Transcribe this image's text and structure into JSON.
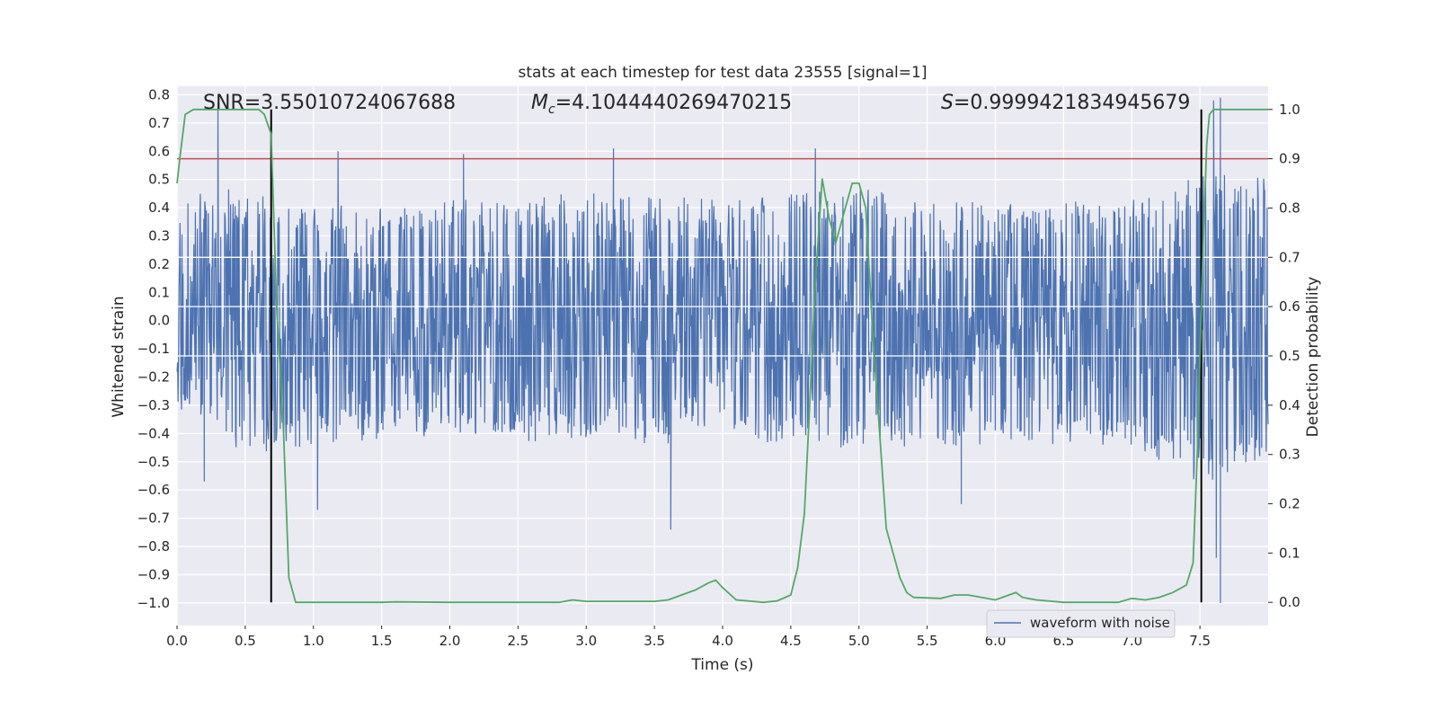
{
  "chart_data": {
    "type": "line",
    "title": "stats at each timestep for test data 23555 [signal=1]",
    "xlabel": "Time (s)",
    "ylabel": "Whitened strain",
    "y2label": "Detection probability",
    "xlim": [
      0.0,
      8.0
    ],
    "ylim": [
      -1.08,
      0.83
    ],
    "y2lim": [
      -0.047,
      1.047
    ],
    "x_ticks": [
      0.0,
      0.5,
      1.0,
      1.5,
      2.0,
      2.5,
      3.0,
      3.5,
      4.0,
      4.5,
      5.0,
      5.5,
      6.0,
      6.5,
      7.0,
      7.5
    ],
    "x_tick_labels": [
      "0.0",
      "0.5",
      "1.0",
      "1.5",
      "2.0",
      "2.5",
      "3.0",
      "3.5",
      "4.0",
      "4.5",
      "5.0",
      "5.5",
      "6.0",
      "6.5",
      "7.0",
      "7.5"
    ],
    "y_ticks": [
      0.8,
      0.7,
      0.6,
      0.5,
      0.4,
      0.3,
      0.2,
      0.1,
      0.0,
      -0.1,
      -0.2,
      -0.3,
      -0.4,
      -0.5,
      -0.6,
      -0.7,
      -0.8,
      -0.9,
      -1.0
    ],
    "y_tick_labels": [
      "0.8",
      "0.7",
      "0.6",
      "0.5",
      "0.4",
      "0.3",
      "0.2",
      "0.1",
      "0.0",
      "−0.1",
      "−0.2",
      "−0.3",
      "−0.4",
      "−0.5",
      "−0.6",
      "−0.7",
      "−0.8",
      "−0.9",
      "−1.0"
    ],
    "y2_ticks": [
      1.0,
      0.9,
      0.8,
      0.7,
      0.6,
      0.5,
      0.4,
      0.3,
      0.2,
      0.1,
      0.0
    ],
    "y2_tick_labels": [
      "1.0",
      "0.9",
      "0.8",
      "0.7",
      "0.6",
      "0.5",
      "0.4",
      "0.3",
      "0.2",
      "0.1",
      "0.0"
    ],
    "grid": true,
    "legend": {
      "placement": "lower-right",
      "entries": [
        "waveform with noise"
      ]
    },
    "annotations": {
      "snr": "SNR=3.55010724067688",
      "mc_prefix": "M",
      "mc_sub": "c",
      "mc_value": "=4.1044440269470215",
      "s_prefix": "S",
      "s_value": "=0.9999421834945679"
    },
    "threshold_line": {
      "axis": "y2",
      "value": 0.9,
      "color": "#c44e52"
    },
    "vertical_lines": [
      0.69,
      7.51
    ],
    "horizontal_white_lines_y2": [
      0.7,
      0.6,
      0.5
    ],
    "series": [
      {
        "name": "waveform with noise",
        "axis": "y",
        "color": "#4c72b0",
        "description_envelope": {
          "x": [
            0.0,
            0.5,
            1.0,
            1.5,
            2.0,
            2.5,
            3.0,
            3.5,
            4.0,
            4.5,
            5.0,
            5.5,
            6.0,
            6.5,
            7.0,
            7.5,
            8.0
          ],
          "typical_max": [
            0.42,
            0.45,
            0.38,
            0.4,
            0.41,
            0.42,
            0.43,
            0.42,
            0.41,
            0.43,
            0.45,
            0.42,
            0.41,
            0.42,
            0.41,
            0.5,
            0.48
          ],
          "typical_min": [
            -0.3,
            -0.45,
            -0.42,
            -0.4,
            -0.4,
            -0.41,
            -0.42,
            -0.42,
            -0.4,
            -0.42,
            -0.44,
            -0.42,
            -0.43,
            -0.42,
            -0.42,
            -0.55,
            -0.5
          ],
          "spikes": [
            [
              0.3,
              0.77
            ],
            [
              1.18,
              0.6
            ],
            [
              2.1,
              0.59
            ],
            [
              3.2,
              0.61
            ],
            [
              4.68,
              0.61
            ],
            [
              7.6,
              0.78
            ],
            [
              7.65,
              0.79
            ],
            [
              0.2,
              -0.57
            ],
            [
              1.03,
              -0.67
            ],
            [
              3.62,
              -0.74
            ],
            [
              5.75,
              -0.65
            ],
            [
              7.65,
              -1.0
            ],
            [
              7.62,
              -0.84
            ]
          ]
        }
      },
      {
        "name": "",
        "axis": "y2",
        "color": "#55a868",
        "x": [
          0.0,
          0.02,
          0.06,
          0.12,
          0.18,
          0.3,
          0.5,
          0.6,
          0.64,
          0.69,
          0.73,
          0.78,
          0.82,
          0.87,
          0.9,
          1.0,
          1.2,
          1.5,
          1.6,
          2.0,
          2.5,
          2.8,
          2.9,
          3.0,
          3.3,
          3.5,
          3.6,
          3.7,
          3.8,
          3.9,
          3.95,
          4.0,
          4.1,
          4.3,
          4.4,
          4.5,
          4.55,
          4.6,
          4.63,
          4.68,
          4.73,
          4.78,
          4.83,
          4.88,
          4.95,
          5.0,
          5.05,
          5.1,
          5.2,
          5.3,
          5.35,
          5.4,
          5.6,
          5.7,
          5.8,
          6.0,
          6.1,
          6.15,
          6.2,
          6.3,
          6.5,
          6.9,
          7.0,
          7.1,
          7.2,
          7.3,
          7.4,
          7.45,
          7.48,
          7.52,
          7.55,
          7.57,
          7.6,
          7.65,
          7.7,
          8.0
        ],
        "y": [
          0.85,
          0.9,
          0.99,
          1.0,
          1.0,
          1.0,
          1.0,
          1.0,
          0.99,
          0.95,
          0.6,
          0.35,
          0.05,
          0.0,
          0.0,
          0.0,
          0.0,
          0.0,
          0.001,
          0.0,
          0.0,
          0.0,
          0.005,
          0.002,
          0.002,
          0.002,
          0.005,
          0.015,
          0.025,
          0.04,
          0.045,
          0.03,
          0.005,
          0.0,
          0.003,
          0.015,
          0.07,
          0.18,
          0.35,
          0.65,
          0.86,
          0.78,
          0.73,
          0.78,
          0.85,
          0.85,
          0.8,
          0.55,
          0.15,
          0.05,
          0.02,
          0.01,
          0.008,
          0.015,
          0.015,
          0.005,
          0.015,
          0.02,
          0.01,
          0.005,
          0.0,
          0.0,
          0.008,
          0.005,
          0.01,
          0.02,
          0.035,
          0.08,
          0.3,
          0.7,
          0.93,
          0.99,
          1.0,
          1.0,
          1.0,
          1.0
        ]
      }
    ]
  }
}
